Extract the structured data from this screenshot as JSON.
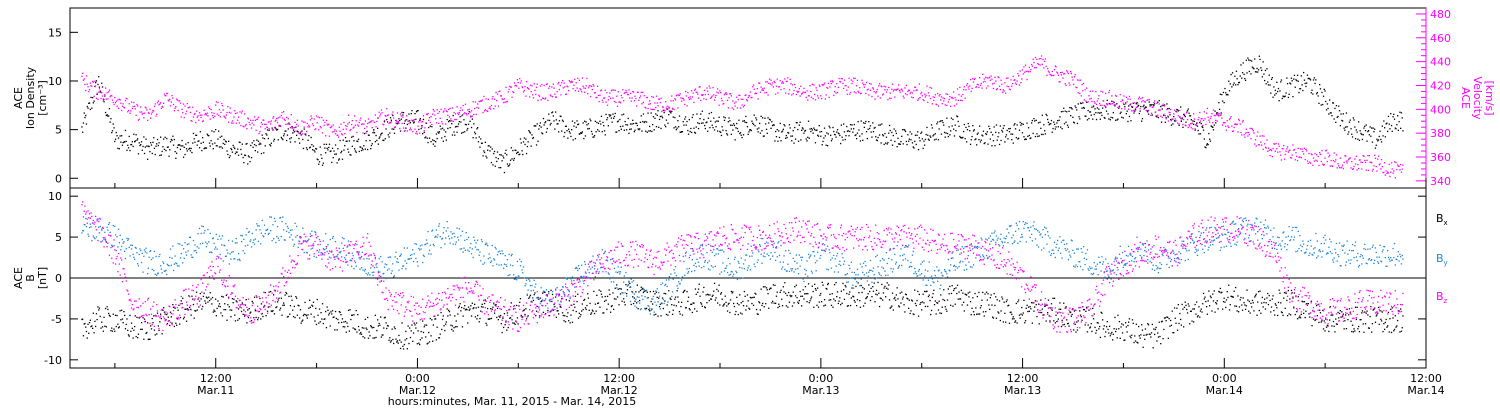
{
  "colors": {
    "black": "#000000",
    "magenta": "#ff00ff",
    "blue": "#1c86d8"
  },
  "chart_data": [
    {
      "type": "scatter",
      "panel": "ion-density-velocity",
      "ylabel_lines": [
        "ACE",
        "Ion Density",
        "[cm⁻³]"
      ],
      "ylim": [
        -1,
        17.5
      ],
      "yticks": [
        0,
        5,
        10,
        15
      ],
      "y2label_lines": [
        "ACE",
        "Velocity",
        "[km/s]"
      ],
      "y2lim": [
        334,
        485
      ],
      "y2ticks": [
        340,
        360,
        380,
        400,
        420,
        440,
        460,
        480
      ],
      "xlim": [
        "2015-03-11 03:20",
        "2015-03-14 12:00"
      ],
      "series": [
        {
          "axis": "left",
          "color": "black",
          "x_hours_from_mar11_0000": [
            4,
            5,
            6,
            7,
            8,
            9,
            10,
            11,
            12,
            13,
            14,
            15,
            16,
            17,
            18,
            19,
            20,
            21,
            22,
            23,
            24,
            25,
            26,
            27,
            28,
            29,
            30,
            31,
            32,
            33,
            34,
            35,
            36,
            37,
            38,
            39,
            40,
            41,
            42,
            43,
            44,
            45,
            46,
            47,
            48,
            49,
            50,
            51,
            52,
            53,
            54,
            55,
            56,
            57,
            58,
            59,
            60,
            61,
            62,
            63,
            64,
            65,
            66,
            67,
            68,
            69,
            70,
            71,
            72,
            73,
            74,
            75,
            76,
            77,
            78,
            79,
            80,
            81,
            82,
            83
          ],
          "y": [
            5,
            10,
            4,
            4,
            3,
            3.5,
            3,
            4,
            4,
            3,
            2.5,
            4,
            5,
            4.5,
            2.5,
            2.5,
            3.5,
            4,
            5,
            6,
            6,
            4,
            5.5,
            6,
            3,
            1.5,
            3,
            4.5,
            6,
            5,
            5,
            5.5,
            6,
            5.5,
            6,
            6.5,
            5.5,
            6,
            5.5,
            5,
            6,
            5,
            4.5,
            5,
            4.5,
            4.5,
            5,
            5,
            4.5,
            4,
            4,
            5,
            5.5,
            4.5,
            4.5,
            4.5,
            5,
            5.5,
            6,
            6.5,
            7,
            7,
            7,
            7,
            7,
            6.5,
            6,
            4,
            9,
            11,
            12,
            9,
            9.5,
            10,
            8,
            6,
            5,
            4,
            6,
            6
          ]
        },
        {
          "axis": "right",
          "color": "magenta",
          "x_hours_from_mar11_0000": [
            4,
            5,
            6,
            7,
            8,
            9,
            10,
            11,
            12,
            13,
            14,
            15,
            16,
            17,
            18,
            19,
            20,
            21,
            22,
            23,
            24,
            25,
            26,
            27,
            28,
            29,
            30,
            31,
            32,
            33,
            34,
            35,
            36,
            37,
            38,
            39,
            40,
            41,
            42,
            43,
            44,
            45,
            46,
            47,
            48,
            49,
            50,
            51,
            52,
            53,
            54,
            55,
            56,
            57,
            58,
            59,
            60,
            61,
            62,
            63,
            64,
            65,
            66,
            67,
            68,
            69,
            70,
            71,
            72,
            73,
            74,
            75,
            76,
            77,
            78,
            79,
            80,
            81,
            82,
            83
          ],
          "y": [
            425,
            415,
            410,
            400,
            395,
            410,
            400,
            395,
            400,
            395,
            390,
            385,
            395,
            385,
            390,
            380,
            390,
            385,
            395,
            390,
            385,
            395,
            395,
            400,
            405,
            410,
            420,
            415,
            415,
            420,
            420,
            410,
            410,
            410,
            405,
            405,
            410,
            415,
            410,
            405,
            415,
            420,
            420,
            415,
            415,
            420,
            420,
            415,
            415,
            415,
            415,
            410,
            410,
            420,
            425,
            420,
            430,
            440,
            430,
            425,
            410,
            410,
            405,
            405,
            400,
            395,
            390,
            395,
            390,
            385,
            375,
            365,
            365,
            360,
            360,
            355,
            355,
            355,
            350,
            345
          ]
        }
      ],
      "x_tick_labels": [
        {
          "hours": 12,
          "time": "12:00",
          "date": "Mar.11"
        },
        {
          "hours": 24,
          "time": "0:00",
          "date": "Mar.12"
        },
        {
          "hours": 36,
          "time": "12:00",
          "date": "Mar.12"
        },
        {
          "hours": 48,
          "time": "0:00",
          "date": "Mar.13"
        },
        {
          "hours": 60,
          "time": "12:00",
          "date": "Mar.13"
        },
        {
          "hours": 72,
          "time": "0:00",
          "date": "Mar.14"
        },
        {
          "hours": 84,
          "time": "12:00",
          "date": "Mar.14"
        }
      ]
    },
    {
      "type": "scatter",
      "panel": "magnetic-field",
      "ylabel_lines": [
        "ACE",
        "B",
        "[nT]"
      ],
      "ylim": [
        -11,
        11
      ],
      "yticks": [
        -10,
        -5,
        0,
        5,
        10
      ],
      "zero_line": true,
      "legend": {
        "placement": "right",
        "entries": [
          {
            "label": "B",
            "sub": "x",
            "color": "black"
          },
          {
            "label": "B",
            "sub": "y",
            "color": "blue"
          },
          {
            "label": "B",
            "sub": "z",
            "color": "magenta"
          }
        ]
      },
      "series": [
        {
          "sub": "x",
          "color": "black",
          "x_hours_from_mar11_0000": [
            4,
            5,
            6,
            7,
            8,
            9,
            10,
            11,
            12,
            13,
            14,
            15,
            16,
            17,
            18,
            19,
            20,
            21,
            22,
            23,
            24,
            25,
            26,
            27,
            28,
            29,
            30,
            31,
            32,
            33,
            34,
            35,
            36,
            37,
            38,
            39,
            40,
            41,
            42,
            43,
            44,
            45,
            46,
            47,
            48,
            49,
            50,
            51,
            52,
            53,
            54,
            55,
            56,
            57,
            58,
            59,
            60,
            61,
            62,
            63,
            64,
            65,
            66,
            67,
            68,
            69,
            70,
            71,
            72,
            73,
            74,
            75,
            76,
            77,
            78,
            79,
            80,
            81,
            82,
            83
          ],
          "y": [
            -6,
            -5,
            -5,
            -6,
            -6,
            -5,
            -4,
            -3,
            -3,
            -4,
            -4,
            -3,
            -3,
            -4,
            -4,
            -5,
            -5,
            -6,
            -6,
            -7,
            -7,
            -6,
            -5,
            -4,
            -4,
            -5,
            -4,
            -3,
            -3,
            -4,
            -3,
            -3,
            -2,
            -2,
            -3,
            -3,
            -3,
            -2,
            -2,
            -3,
            -3,
            -2,
            -2,
            -2,
            -2,
            -2,
            -2,
            -2,
            -2,
            -3,
            -3,
            -3,
            -2,
            -3,
            -3,
            -4,
            -4,
            -4,
            -4,
            -5,
            -5,
            -6,
            -6,
            -7,
            -7,
            -5,
            -4,
            -3,
            -2,
            -3,
            -3,
            -3,
            -3,
            -4,
            -5,
            -5,
            -5,
            -5,
            -5,
            -5
          ]
        },
        {
          "sub": "y",
          "color": "blue",
          "x_hours_from_mar11_0000": [
            4,
            5,
            6,
            7,
            8,
            9,
            10,
            11,
            12,
            13,
            14,
            15,
            16,
            17,
            18,
            19,
            20,
            21,
            22,
            23,
            24,
            25,
            26,
            27,
            28,
            29,
            30,
            31,
            32,
            33,
            34,
            35,
            36,
            37,
            38,
            39,
            40,
            41,
            42,
            43,
            44,
            45,
            46,
            47,
            48,
            49,
            50,
            51,
            52,
            53,
            54,
            55,
            56,
            57,
            58,
            59,
            60,
            61,
            62,
            63,
            64,
            65,
            66,
            67,
            68,
            69,
            70,
            71,
            72,
            73,
            74,
            75,
            76,
            77,
            78,
            79,
            80,
            81,
            82,
            83
          ],
          "y": [
            6,
            6,
            5,
            3,
            2,
            2,
            3,
            5,
            4,
            3,
            5,
            6,
            6,
            5,
            4,
            4,
            3,
            2,
            1,
            2,
            3,
            5,
            6,
            4,
            3,
            2,
            1,
            -2,
            -3,
            -1,
            1,
            2,
            0,
            -2,
            -3,
            -1,
            2,
            3,
            2,
            1,
            3,
            4,
            2,
            1,
            3,
            2,
            0,
            1,
            2,
            3,
            1,
            0,
            2,
            3,
            4,
            5,
            6,
            5,
            4,
            3,
            2,
            1,
            3,
            4,
            2,
            3,
            4,
            5,
            5,
            6,
            6,
            5,
            5,
            4,
            4,
            3,
            3,
            3,
            3,
            3
          ]
        },
        {
          "sub": "z",
          "color": "magenta",
          "x_hours_from_mar11_0000": [
            4,
            5,
            6,
            7,
            8,
            9,
            10,
            11,
            12,
            13,
            14,
            15,
            16,
            17,
            18,
            19,
            20,
            21,
            22,
            23,
            24,
            25,
            26,
            27,
            28,
            29,
            30,
            31,
            32,
            33,
            34,
            35,
            36,
            37,
            38,
            39,
            40,
            41,
            42,
            43,
            44,
            45,
            46,
            47,
            48,
            49,
            50,
            51,
            52,
            53,
            54,
            55,
            56,
            57,
            58,
            59,
            60,
            61,
            62,
            63,
            64,
            65,
            66,
            67,
            68,
            69,
            70,
            71,
            72,
            73,
            74,
            75,
            76,
            77,
            78,
            79,
            80,
            81,
            82,
            83
          ],
          "y": [
            8,
            6,
            3,
            -3,
            -4,
            -5,
            -3,
            -2,
            2,
            -2,
            -4,
            -3,
            0,
            4,
            4,
            2,
            3,
            4,
            -2,
            -3,
            -4,
            -3,
            -2,
            -1,
            -3,
            -4,
            -5,
            -4,
            -3,
            -2,
            0,
            2,
            3,
            3,
            2,
            3,
            4,
            4,
            5,
            5,
            5,
            5,
            6,
            6,
            5,
            5,
            5,
            5,
            5,
            5,
            5,
            4,
            4,
            4,
            3,
            2,
            0,
            -3,
            -5,
            -5,
            -4,
            0,
            2,
            3,
            4,
            3,
            5,
            6,
            6,
            6,
            5,
            3,
            -2,
            -3,
            -4,
            -4,
            -3,
            -3,
            -3,
            -3
          ]
        }
      ]
    }
  ],
  "footer": {
    "xlabel": "hours:minutes, Mar. 11, 2015 - Mar. 14, 2015"
  }
}
